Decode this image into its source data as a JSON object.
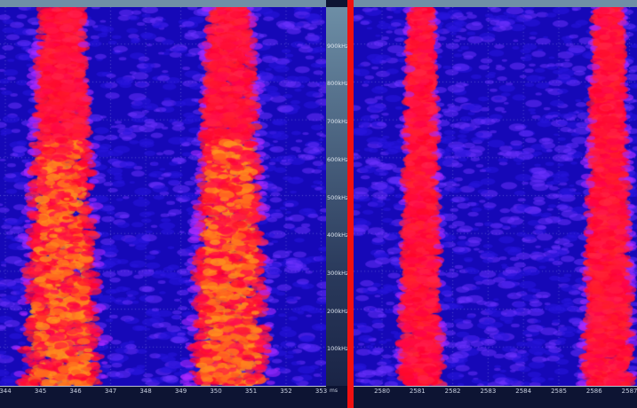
{
  "chart_data": [
    {
      "type": "heatmap",
      "view": "3D spectrogram",
      "xunit": "ms",
      "x_ticks": [
        "344",
        "345",
        "346",
        "347",
        "348",
        "349",
        "350",
        "351",
        "352",
        "353"
      ],
      "xlim": [
        344,
        353
      ],
      "y_ticks": [
        "100kHz",
        "200kHz",
        "300kHz",
        "400kHz",
        "500kHz",
        "600kHz",
        "700kHz",
        "800kHz",
        "900kHz"
      ],
      "ylim_khz": [
        0,
        950
      ],
      "energy_bursts_ms": [
        [
          344.6,
          346.6
        ],
        [
          349.4,
          351.4
        ]
      ],
      "colors": {
        "background": "#1a10c8",
        "low": "#5a20ff",
        "mid": "#ff1a3a",
        "high": "#ff7a1a"
      }
    },
    {
      "type": "heatmap",
      "view": "3D spectrogram",
      "x_ticks": [
        "2580",
        "2581",
        "2582",
        "2583",
        "2584",
        "2585",
        "2586",
        "2587"
      ],
      "xlim": [
        2579,
        2587.2
      ],
      "energy_bursts_ms": [
        [
          2580.6,
          2581.6
        ],
        [
          2585.8,
          2587.0
        ]
      ],
      "colors": {
        "background": "#1a10c8",
        "low": "#5a20ff",
        "mid": "#ff1a3a"
      }
    }
  ],
  "divider_color": "#f01010"
}
